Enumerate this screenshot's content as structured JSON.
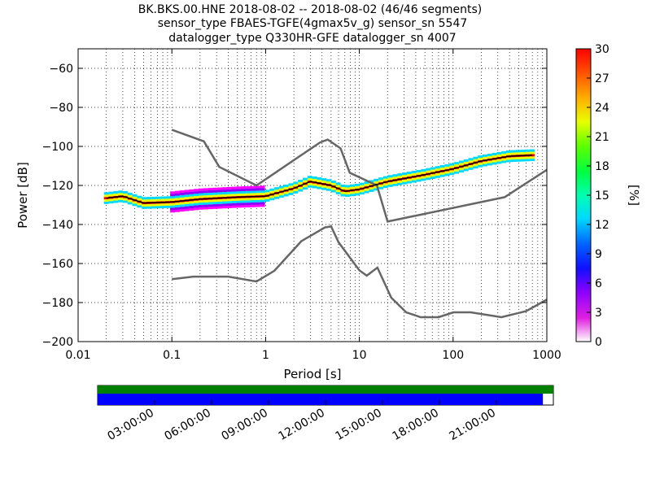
{
  "title_lines": [
    "BK.BKS.00.HNE   2018-08-02 -- 2018-08-02  (46/46 segments)",
    "sensor_type FBAES-TGFE(4gmax5v_g) sensor_sn 5547",
    "datalogger_type Q330HR-GFE datalogger_sn 4007"
  ],
  "chart_data": {
    "type": "heatmap",
    "xlabel": "Period [s]",
    "ylabel": "Power [dB]",
    "xscale": "log",
    "xlim": [
      0.01,
      1000
    ],
    "ylim": [
      -200,
      -50
    ],
    "xticks": [
      0.01,
      0.1,
      1,
      10,
      100,
      1000
    ],
    "xtick_labels": [
      "0.01",
      "0.1",
      "1",
      "10",
      "100",
      "1000"
    ],
    "yticks": [
      -200,
      -180,
      -160,
      -140,
      -120,
      -100,
      -80,
      -60
    ],
    "grid": true,
    "colorbar": {
      "label": "[%]",
      "ticks": [
        0,
        3,
        6,
        9,
        12,
        15,
        18,
        21,
        24,
        27,
        30
      ],
      "range": [
        0,
        30
      ]
    },
    "series": [
      {
        "name": "",
        "style": "model-curve",
        "color": "#666666",
        "points": [
          [
            0.1,
            -91.5
          ],
          [
            0.22,
            -97.4
          ],
          [
            0.32,
            -110.5
          ],
          [
            0.8,
            -120
          ],
          [
            3.8,
            -98
          ],
          [
            4.6,
            -96.5
          ],
          [
            6.3,
            -101
          ],
          [
            7.9,
            -113.5
          ],
          [
            15.4,
            -120
          ],
          [
            20,
            -138.5
          ],
          [
            354.8,
            -126
          ],
          [
            1000,
            -112
          ]
        ]
      },
      {
        "name": "",
        "style": "model-curve",
        "color": "#666666",
        "points": [
          [
            0.1,
            -168
          ],
          [
            0.17,
            -166.7
          ],
          [
            0.4,
            -166.7
          ],
          [
            0.8,
            -169.2
          ],
          [
            1.24,
            -163.7
          ],
          [
            2.4,
            -148.6
          ],
          [
            4.3,
            -141.5
          ],
          [
            5.0,
            -141
          ],
          [
            6.0,
            -149.1
          ],
          [
            10.0,
            -163.5
          ],
          [
            12.0,
            -166.2
          ],
          [
            15.6,
            -162.1
          ],
          [
            21.9,
            -177.5
          ],
          [
            31.6,
            -185
          ],
          [
            45.0,
            -187.5
          ],
          [
            70.0,
            -187.5
          ],
          [
            101.0,
            -185
          ],
          [
            154.0,
            -185
          ],
          [
            328.0,
            -187.5
          ],
          [
            600.0,
            -184.4
          ],
          [
            1000.0,
            -178.5
          ]
        ]
      }
    ],
    "mode_estimate": {
      "name": "",
      "points": [
        [
          0.02,
          -126.5
        ],
        [
          0.03,
          -125.5
        ],
        [
          0.04,
          -127.5
        ],
        [
          0.05,
          -129
        ],
        [
          0.1,
          -128.5
        ],
        [
          0.2,
          -127
        ],
        [
          0.5,
          -126
        ],
        [
          1,
          -125.5
        ],
        [
          2,
          -121.5
        ],
        [
          3,
          -118
        ],
        [
          5,
          -120
        ],
        [
          7,
          -123
        ],
        [
          10,
          -122
        ],
        [
          20,
          -118
        ],
        [
          50,
          -114.5
        ],
        [
          100,
          -111.5
        ],
        [
          200,
          -107.5
        ],
        [
          400,
          -105
        ],
        [
          700,
          -104.5
        ]
      ]
    },
    "time_axis": {
      "tick_labels": [
        "03:00:00",
        "06:00:00",
        "09:00:00",
        "12:00:00",
        "15:00:00",
        "18:00:00",
        "21:00:00"
      ],
      "bars": [
        {
          "color": "#008000",
          "coverage": 1.0
        },
        {
          "color": "#0000ff",
          "coverage": 0.977
        }
      ]
    }
  }
}
